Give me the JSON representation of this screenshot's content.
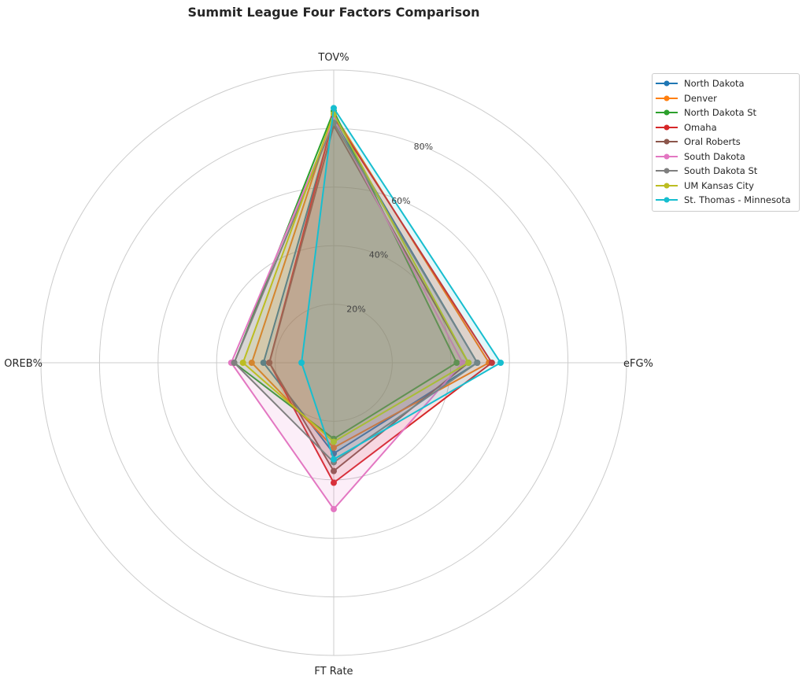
{
  "chart_data": {
    "type": "radar",
    "title": "Summit League Four Factors Comparison",
    "axes": [
      "eFG%",
      "TOV%",
      "OREB%",
      "FT Rate"
    ],
    "radial_ticks": [
      20,
      40,
      60,
      80
    ],
    "radial_tick_labels": [
      "20%",
      "40%",
      "60%",
      "80%"
    ],
    "rmax": 100,
    "grid": true,
    "legend_position": "upper-right-outside",
    "series": [
      {
        "name": "North Dakota",
        "color": "#1f77b4",
        "values": [
          49,
          83,
          24,
          31
        ]
      },
      {
        "name": "Denver",
        "color": "#ff7f0e",
        "values": [
          53,
          85,
          28,
          29
        ]
      },
      {
        "name": "North Dakota St",
        "color": "#2ca02c",
        "values": [
          42,
          86,
          34,
          26
        ]
      },
      {
        "name": "Omaha",
        "color": "#d62728",
        "values": [
          54,
          84,
          22,
          41
        ]
      },
      {
        "name": "Oral Roberts",
        "color": "#8c564b",
        "values": [
          46,
          81,
          22,
          37
        ]
      },
      {
        "name": "South Dakota",
        "color": "#e377c2",
        "values": [
          44,
          83,
          35,
          50
        ]
      },
      {
        "name": "South Dakota St",
        "color": "#7f7f7f",
        "values": [
          49,
          82,
          34,
          34
        ]
      },
      {
        "name": "UM Kansas City",
        "color": "#bcbd22",
        "values": [
          46,
          85,
          31,
          27
        ]
      },
      {
        "name": "St. Thomas - Minnesota",
        "color": "#17becf",
        "values": [
          57,
          87,
          11,
          33
        ]
      }
    ]
  }
}
